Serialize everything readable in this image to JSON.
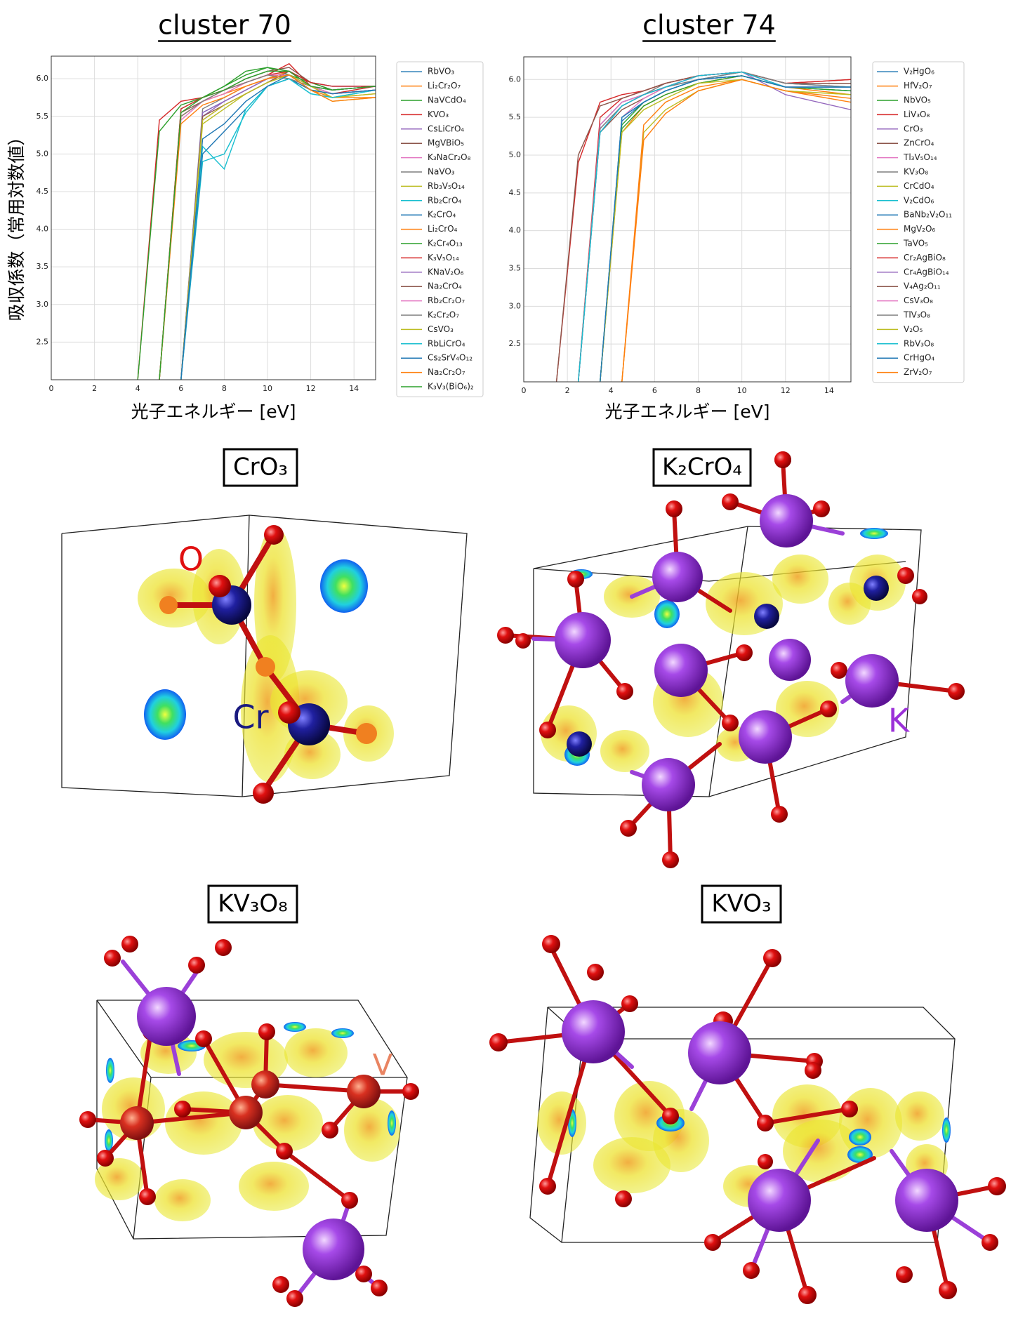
{
  "chart_data": [
    {
      "type": "line",
      "title": "cluster 70",
      "xlabel": "光子エネルギー [eV]",
      "ylabel": "吸収係数（常用対数値）",
      "xlim": [
        0,
        15
      ],
      "xticks": [
        0,
        2,
        4,
        6,
        8,
        10,
        12,
        14
      ],
      "ylim": [
        2.0,
        6.3
      ],
      "yticks": [
        2.5,
        {
          "value": 3,
          "label": "3.0"
        },
        3.5,
        {
          "value": 4,
          "label": "4.0"
        },
        4.5,
        {
          "value": 5,
          "label": "5.0"
        },
        5.5,
        {
          "value": 6,
          "label": "6.0"
        }
      ],
      "grid": true,
      "legend": "outside-right",
      "x": [
        4,
        5,
        6,
        7,
        8,
        9,
        10,
        11,
        12,
        13,
        15
      ],
      "series": [
        {
          "name": "RbVO₃",
          "color": "#1f77b4",
          "values": [
            null,
            null,
            2.0,
            5.55,
            5.7,
            5.85,
            6.0,
            6.1,
            5.95,
            5.9,
            5.9
          ]
        },
        {
          "name": "Li₂Cr₂O₇",
          "color": "#ff7f0e",
          "values": [
            null,
            2.0,
            5.5,
            5.7,
            5.8,
            5.95,
            6.05,
            6.0,
            5.85,
            5.75,
            5.8
          ]
        },
        {
          "name": "NaVCdO₄",
          "color": "#2ca02c",
          "values": [
            null,
            2.0,
            5.6,
            5.75,
            5.9,
            6.1,
            6.15,
            6.05,
            5.95,
            5.85,
            5.9
          ]
        },
        {
          "name": "KVO₃",
          "color": "#d62728",
          "values": [
            2.0,
            5.45,
            5.7,
            5.75,
            5.85,
            5.95,
            6.05,
            6.2,
            5.9,
            5.8,
            5.9
          ]
        },
        {
          "name": "CsLiCrO₄",
          "color": "#9467bd",
          "values": [
            null,
            null,
            2.0,
            5.5,
            5.7,
            5.85,
            6.0,
            6.1,
            5.9,
            5.85,
            5.9
          ]
        },
        {
          "name": "MgVBiO₅",
          "color": "#8c564b",
          "values": [
            null,
            2.0,
            5.55,
            5.7,
            5.85,
            6.0,
            6.1,
            6.15,
            5.95,
            5.85,
            5.9
          ]
        },
        {
          "name": "K₃NaCr₂O₈",
          "color": "#e377c2",
          "values": [
            null,
            null,
            2.0,
            5.45,
            5.65,
            5.8,
            5.95,
            6.1,
            5.9,
            5.8,
            5.85
          ]
        },
        {
          "name": "NaVO₃",
          "color": "#7f7f7f",
          "values": [
            null,
            null,
            2.0,
            5.6,
            5.75,
            5.9,
            6.0,
            6.05,
            5.9,
            5.85,
            5.9
          ]
        },
        {
          "name": "Rb₃V₅O₁₄",
          "color": "#bcbd22",
          "values": [
            null,
            null,
            2.0,
            5.4,
            5.6,
            5.8,
            5.95,
            6.05,
            5.85,
            5.7,
            5.75
          ]
        },
        {
          "name": "Rb₂CrO₄",
          "color": "#17becf",
          "values": [
            null,
            null,
            2.0,
            4.9,
            5.0,
            5.55,
            5.9,
            6.0,
            5.8,
            5.75,
            5.85
          ]
        },
        {
          "name": "K₂CrO₄",
          "color": "#1f77b4",
          "values": [
            null,
            null,
            2.0,
            5.0,
            5.3,
            5.6,
            5.9,
            6.0,
            5.85,
            5.8,
            5.85
          ]
        },
        {
          "name": "Li₂CrO₄",
          "color": "#ff7f0e",
          "values": [
            null,
            2.0,
            5.5,
            5.7,
            5.8,
            5.9,
            6.0,
            6.1,
            5.9,
            5.75,
            5.75
          ]
        },
        {
          "name": "K₂Cr₄O₁₃",
          "color": "#2ca02c",
          "values": [
            2.0,
            5.3,
            5.65,
            5.75,
            5.9,
            6.05,
            6.15,
            6.1,
            5.95,
            5.85,
            5.9
          ]
        },
        {
          "name": "K₃V₅O₁₄",
          "color": "#d62728",
          "values": [
            null,
            2.0,
            5.6,
            5.75,
            5.85,
            5.95,
            6.05,
            6.1,
            5.95,
            5.9,
            5.9
          ]
        },
        {
          "name": "KNaV₂O₆",
          "color": "#9467bd",
          "values": [
            null,
            null,
            2.0,
            5.55,
            5.7,
            5.85,
            6.0,
            6.05,
            5.9,
            5.85,
            5.9
          ]
        },
        {
          "name": "Na₂CrO₄",
          "color": "#8c564b",
          "values": [
            null,
            null,
            2.0,
            5.5,
            5.65,
            5.8,
            5.95,
            6.1,
            5.9,
            5.8,
            5.85
          ]
        },
        {
          "name": "Rb₂Cr₂O₇",
          "color": "#e377c2",
          "values": [
            null,
            2.0,
            5.45,
            5.7,
            5.8,
            5.95,
            6.05,
            6.05,
            5.9,
            5.8,
            5.85
          ]
        },
        {
          "name": "K₂Cr₂O₇",
          "color": "#7f7f7f",
          "values": [
            null,
            2.0,
            5.5,
            5.7,
            5.85,
            5.95,
            6.05,
            6.0,
            5.9,
            5.85,
            5.9
          ]
        },
        {
          "name": "CsVO₃",
          "color": "#bcbd22",
          "values": [
            null,
            null,
            2.0,
            5.45,
            5.65,
            5.8,
            5.95,
            6.05,
            5.9,
            5.75,
            5.8
          ]
        },
        {
          "name": "RbLiCrO₄",
          "color": "#17becf",
          "values": [
            null,
            null,
            2.0,
            5.1,
            4.8,
            5.6,
            5.9,
            6.0,
            5.8,
            5.75,
            5.85
          ]
        },
        {
          "name": "Cs₂SrV₄O₁₂",
          "color": "#1f77b4",
          "values": [
            null,
            null,
            2.0,
            5.2,
            5.4,
            5.7,
            5.9,
            6.05,
            5.85,
            5.8,
            5.85
          ]
        },
        {
          "name": "Na₂Cr₂O₇",
          "color": "#ff7f0e",
          "values": [
            null,
            2.0,
            5.4,
            5.65,
            5.75,
            5.9,
            6.0,
            6.05,
            5.85,
            5.7,
            5.75
          ]
        },
        {
          "name": "K₃V₃(BiO₆)₂",
          "color": "#2ca02c",
          "values": [
            null,
            2.0,
            5.55,
            5.75,
            5.85,
            6.0,
            6.1,
            6.1,
            5.9,
            5.85,
            5.9
          ]
        }
      ]
    },
    {
      "type": "line",
      "title": "cluster 74",
      "xlabel": "光子エネルギー [eV]",
      "xlim": [
        0,
        15
      ],
      "xticks": [
        0,
        2,
        4,
        6,
        8,
        10,
        12,
        14
      ],
      "ylim": [
        2.0,
        6.3
      ],
      "yticks": [
        2.5,
        {
          "value": 3,
          "label": "3.0"
        },
        3.5,
        {
          "value": 4,
          "label": "4.0"
        },
        4.5,
        {
          "value": 5,
          "label": "5.0"
        },
        5.5,
        {
          "value": 6,
          "label": "6.0"
        }
      ],
      "grid": true,
      "legend": "outside-right",
      "x": [
        1.5,
        2.5,
        3.5,
        4.5,
        5.5,
        6.5,
        8,
        10,
        12,
        15
      ],
      "series": [
        {
          "name": "V₂HgO₆",
          "color": "#1f77b4",
          "values": [
            null,
            2.0,
            5.4,
            5.7,
            5.8,
            5.9,
            6.0,
            6.1,
            5.95,
            5.9
          ]
        },
        {
          "name": "HfV₂O₇",
          "color": "#ff7f0e",
          "values": [
            null,
            null,
            2.0,
            5.3,
            5.65,
            5.8,
            5.95,
            6.05,
            5.9,
            5.8
          ]
        },
        {
          "name": "NbVO₅",
          "color": "#2ca02c",
          "values": [
            null,
            null,
            2.0,
            5.4,
            5.7,
            5.85,
            6.0,
            6.05,
            5.9,
            5.85
          ]
        },
        {
          "name": "LiV₃O₈",
          "color": "#d62728",
          "values": [
            null,
            2.0,
            5.5,
            5.75,
            5.85,
            5.95,
            6.05,
            6.1,
            5.95,
            6.0
          ]
        },
        {
          "name": "CrO₃",
          "color": "#9467bd",
          "values": [
            null,
            2.0,
            5.35,
            5.65,
            5.8,
            5.9,
            6.05,
            6.1,
            5.8,
            5.6
          ]
        },
        {
          "name": "ZnCrO₄",
          "color": "#8c564b",
          "values": [
            null,
            2.0,
            5.3,
            5.6,
            5.75,
            5.9,
            6.05,
            6.1,
            5.95,
            5.95
          ]
        },
        {
          "name": "Tl₃V₅O₁₄",
          "color": "#e377c2",
          "values": [
            null,
            null,
            2.0,
            5.5,
            5.75,
            5.9,
            6.05,
            6.1,
            5.9,
            5.9
          ]
        },
        {
          "name": "KV₃O₈",
          "color": "#7f7f7f",
          "values": [
            null,
            2.0,
            5.4,
            5.7,
            5.8,
            5.95,
            6.05,
            6.1,
            5.95,
            5.95
          ]
        },
        {
          "name": "CrCdO₄",
          "color": "#bcbd22",
          "values": [
            null,
            null,
            null,
            2.0,
            5.3,
            5.6,
            5.85,
            6.0,
            5.85,
            5.8
          ]
        },
        {
          "name": "V₂CdO₆",
          "color": "#17becf",
          "values": [
            null,
            null,
            2.0,
            5.5,
            5.7,
            5.85,
            6.0,
            6.05,
            5.9,
            5.9
          ]
        },
        {
          "name": "BaNb₂V₂O₁₁",
          "color": "#1f77b4",
          "values": [
            null,
            null,
            2.0,
            5.45,
            5.7,
            5.85,
            6.0,
            6.05,
            5.9,
            5.85
          ]
        },
        {
          "name": "MgV₂O₆",
          "color": "#ff7f0e",
          "values": [
            null,
            null,
            null,
            2.0,
            5.4,
            5.7,
            5.9,
            6.0,
            5.85,
            5.75
          ]
        },
        {
          "name": "TaVO₅",
          "color": "#2ca02c",
          "values": [
            null,
            null,
            2.0,
            5.35,
            5.65,
            5.8,
            5.95,
            6.05,
            5.9,
            5.85
          ]
        },
        {
          "name": "Cr₂AgBiO₈",
          "color": "#d62728",
          "values": [
            2.0,
            4.9,
            5.7,
            5.8,
            5.85,
            5.95,
            6.05,
            6.1,
            5.95,
            6.0
          ]
        },
        {
          "name": "Cr₄AgBiO₁₄",
          "color": "#9467bd",
          "values": [
            null,
            2.0,
            5.3,
            5.65,
            5.8,
            5.9,
            6.05,
            6.1,
            5.9,
            5.9
          ]
        },
        {
          "name": "V₄Ag₂O₁₁",
          "color": "#8c564b",
          "values": [
            2.0,
            5.0,
            5.65,
            5.75,
            5.85,
            5.95,
            6.05,
            6.1,
            5.95,
            5.95
          ]
        },
        {
          "name": "CsV₃O₈",
          "color": "#e377c2",
          "values": [
            null,
            2.0,
            5.4,
            5.7,
            5.8,
            5.9,
            6.05,
            6.1,
            5.9,
            5.9
          ]
        },
        {
          "name": "TlV₃O₈",
          "color": "#7f7f7f",
          "values": [
            null,
            2.0,
            5.35,
            5.65,
            5.8,
            5.9,
            6.0,
            6.1,
            5.95,
            5.9
          ]
        },
        {
          "name": "V₂O₅",
          "color": "#bcbd22",
          "values": [
            null,
            null,
            2.0,
            5.3,
            5.6,
            5.75,
            5.95,
            6.0,
            5.85,
            5.8
          ]
        },
        {
          "name": "RbV₃O₈",
          "color": "#17becf",
          "values": [
            null,
            2.0,
            5.3,
            5.65,
            5.8,
            5.9,
            6.05,
            6.1,
            5.9,
            5.9
          ]
        },
        {
          "name": "CrHgO₄",
          "color": "#1f77b4",
          "values": [
            null,
            null,
            2.0,
            5.5,
            5.7,
            5.85,
            6.0,
            6.05,
            5.9,
            5.9
          ]
        },
        {
          "name": "ZrV₂O₇",
          "color": "#ff7f0e",
          "values": [
            null,
            null,
            null,
            2.0,
            5.2,
            5.55,
            5.85,
            6.0,
            5.85,
            5.7
          ]
        }
      ]
    }
  ],
  "structures": [
    {
      "formula": "CrO₃",
      "labels": [
        "O",
        "Cr"
      ]
    },
    {
      "formula": "K₂CrO₄",
      "labels": [
        "K"
      ]
    },
    {
      "formula": "KV₃O₈",
      "labels": [
        "V"
      ]
    },
    {
      "formula": "KVO₃"
    }
  ]
}
